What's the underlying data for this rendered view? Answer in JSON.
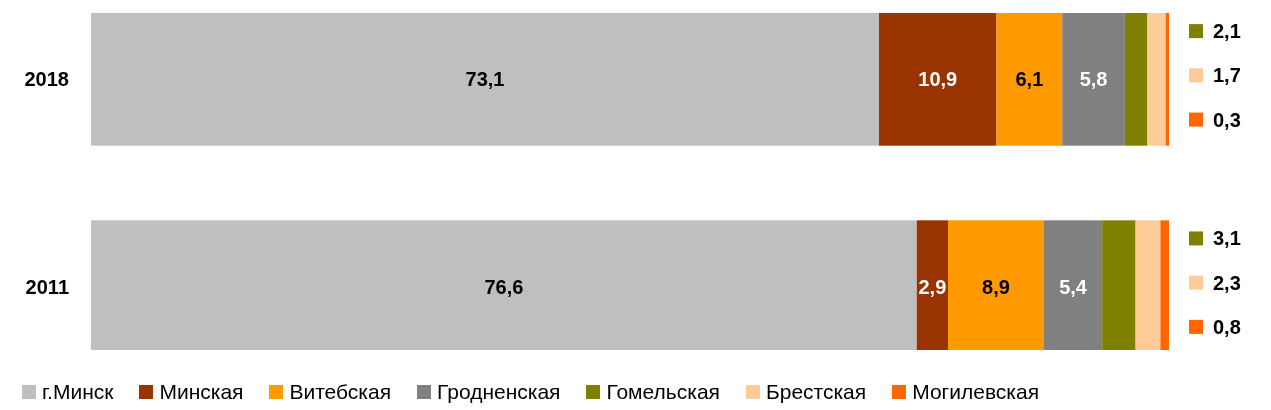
{
  "chart_data": {
    "type": "bar",
    "orientation": "horizontal",
    "stacked": true,
    "legend": "bottom",
    "categories": [
      "2018",
      "2011"
    ],
    "series": [
      {
        "name": "г.Минск",
        "color": "#bfbfbf",
        "values": [
          73.1,
          76.6
        ],
        "value_labels": [
          "73,1",
          "76,6"
        ]
      },
      {
        "name": "Минская",
        "color": "#993300",
        "values": [
          10.9,
          2.9
        ],
        "value_labels": [
          "10,9",
          "2,9"
        ]
      },
      {
        "name": "Витебская",
        "color": "#ff9900",
        "values": [
          6.1,
          8.9
        ],
        "value_labels": [
          "6,1",
          "8,9"
        ]
      },
      {
        "name": "Гродненская",
        "color": "#808080",
        "values": [
          5.8,
          5.4
        ],
        "value_labels": [
          "5,8",
          "5,4"
        ]
      },
      {
        "name": "Гомельская",
        "color": "#808000",
        "values": [
          2.1,
          3.1
        ],
        "value_labels": [
          "2,1",
          "3,1"
        ]
      },
      {
        "name": "Брестская",
        "color": "#ffcc99",
        "values": [
          1.7,
          2.3
        ],
        "value_labels": [
          "1,7",
          "2,3"
        ]
      },
      {
        "name": "Могилевская",
        "color": "#ff6600",
        "values": [
          0.3,
          0.8
        ],
        "value_labels": [
          "0,3",
          "0,8"
        ]
      }
    ]
  }
}
